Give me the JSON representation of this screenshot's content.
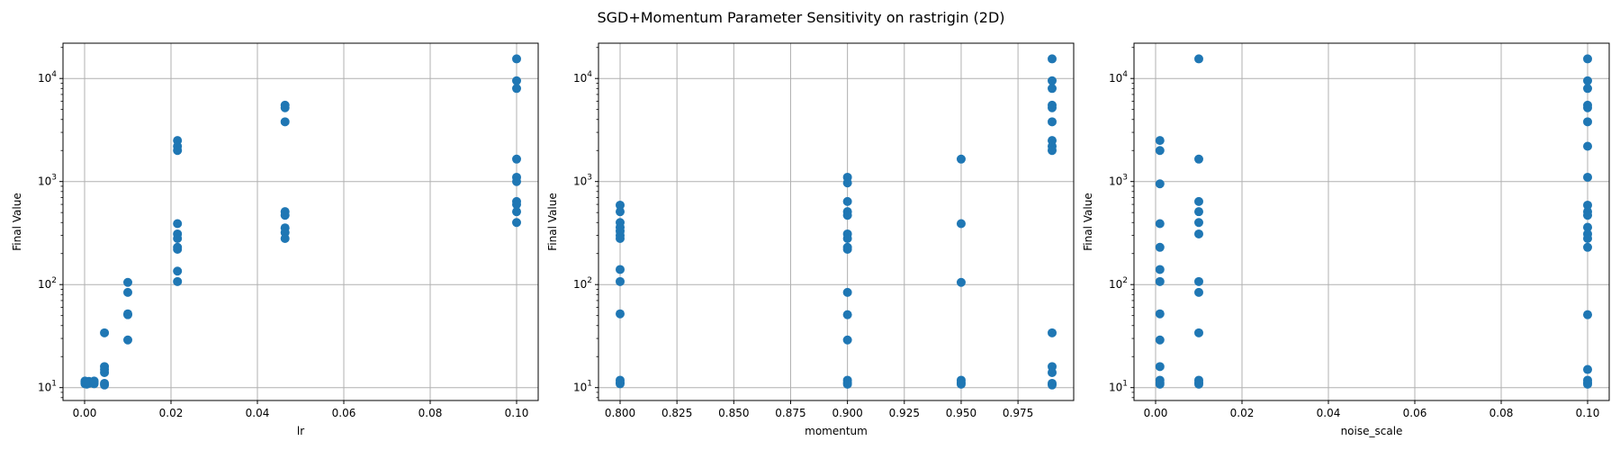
{
  "figure": {
    "title": "SGD+Momentum Parameter Sensitivity on rastrigin (2D)",
    "point_color": "#1f77b4",
    "grid_color": "#b0b0b0"
  },
  "chart_data": [
    {
      "type": "scatter",
      "xlabel": "lr",
      "ylabel": "Final Value",
      "yscale": "log",
      "grid": true,
      "xlim": [
        -0.005,
        0.105
      ],
      "ylim": [
        7.5,
        22000
      ],
      "xticks": [
        0.0,
        0.02,
        0.04,
        0.06,
        0.08,
        0.1
      ],
      "xtick_labels": [
        "0.00",
        "0.02",
        "0.04",
        "0.06",
        "0.08",
        "0.10"
      ],
      "yticks": [
        10,
        100,
        1000,
        10000
      ],
      "points": [
        [
          0.0001,
          10.9
        ],
        [
          0.0001,
          11.3
        ],
        [
          0.0001,
          11.6
        ],
        [
          0.0002,
          11.0
        ],
        [
          0.0005,
          11.2
        ],
        [
          0.0005,
          10.8
        ],
        [
          0.001,
          11.5
        ],
        [
          0.001,
          11.0
        ],
        [
          0.0022,
          11.3
        ],
        [
          0.0022,
          10.9
        ],
        [
          0.0022,
          11.6
        ],
        [
          0.0046,
          34
        ],
        [
          0.0046,
          16
        ],
        [
          0.0046,
          15
        ],
        [
          0.0046,
          14
        ],
        [
          0.0046,
          11
        ],
        [
          0.0046,
          10.6
        ],
        [
          0.01,
          105
        ],
        [
          0.01,
          84
        ],
        [
          0.01,
          52
        ],
        [
          0.01,
          51
        ],
        [
          0.01,
          29
        ],
        [
          0.0215,
          2500
        ],
        [
          0.0215,
          2200
        ],
        [
          0.0215,
          2000
        ],
        [
          0.0215,
          390
        ],
        [
          0.0215,
          310
        ],
        [
          0.0215,
          280
        ],
        [
          0.0215,
          230
        ],
        [
          0.0215,
          220
        ],
        [
          0.0215,
          135
        ],
        [
          0.0215,
          107
        ],
        [
          0.0464,
          5500
        ],
        [
          0.0464,
          5200
        ],
        [
          0.0464,
          3800
        ],
        [
          0.0464,
          510
        ],
        [
          0.0464,
          470
        ],
        [
          0.0464,
          355
        ],
        [
          0.0464,
          320
        ],
        [
          0.0464,
          280
        ],
        [
          0.1,
          15500
        ],
        [
          0.1,
          9500
        ],
        [
          0.1,
          8000
        ],
        [
          0.1,
          1650
        ],
        [
          0.1,
          1100
        ],
        [
          0.1,
          1000
        ],
        [
          0.1,
          640
        ],
        [
          0.1,
          600
        ],
        [
          0.1,
          510
        ],
        [
          0.1,
          400
        ]
      ]
    },
    {
      "type": "scatter",
      "xlabel": "momentum",
      "ylabel": "Final Value",
      "yscale": "log",
      "grid": true,
      "xlim": [
        0.7905,
        0.9995
      ],
      "ylim": [
        7.5,
        22000
      ],
      "xticks": [
        0.8,
        0.825,
        0.85,
        0.875,
        0.9,
        0.925,
        0.95,
        0.975
      ],
      "xtick_labels": [
        "0.800",
        "0.825",
        "0.850",
        "0.875",
        "0.900",
        "0.925",
        "0.950",
        "0.975"
      ],
      "yticks": [
        10,
        100,
        1000,
        10000
      ],
      "points": [
        [
          0.8,
          590
        ],
        [
          0.8,
          510
        ],
        [
          0.8,
          400
        ],
        [
          0.8,
          360
        ],
        [
          0.8,
          330
        ],
        [
          0.8,
          300
        ],
        [
          0.8,
          280
        ],
        [
          0.8,
          140
        ],
        [
          0.8,
          107
        ],
        [
          0.8,
          52
        ],
        [
          0.8,
          11.8
        ],
        [
          0.8,
          11.2
        ],
        [
          0.8,
          10.9
        ],
        [
          0.9,
          1100
        ],
        [
          0.9,
          970
        ],
        [
          0.9,
          640
        ],
        [
          0.9,
          510
        ],
        [
          0.9,
          470
        ],
        [
          0.9,
          310
        ],
        [
          0.9,
          280
        ],
        [
          0.9,
          230
        ],
        [
          0.9,
          220
        ],
        [
          0.9,
          84
        ],
        [
          0.9,
          51
        ],
        [
          0.9,
          29
        ],
        [
          0.9,
          11.8
        ],
        [
          0.9,
          11.2
        ],
        [
          0.9,
          10.8
        ],
        [
          0.95,
          1650
        ],
        [
          0.95,
          390
        ],
        [
          0.95,
          105
        ],
        [
          0.95,
          11.8
        ],
        [
          0.95,
          11.2
        ],
        [
          0.95,
          10.8
        ],
        [
          0.99,
          15500
        ],
        [
          0.99,
          9500
        ],
        [
          0.99,
          8000
        ],
        [
          0.99,
          5500
        ],
        [
          0.99,
          5200
        ],
        [
          0.99,
          3800
        ],
        [
          0.99,
          2500
        ],
        [
          0.99,
          2200
        ],
        [
          0.99,
          2000
        ],
        [
          0.99,
          34
        ],
        [
          0.99,
          16
        ],
        [
          0.99,
          14
        ],
        [
          0.99,
          11
        ],
        [
          0.99,
          10.6
        ]
      ]
    },
    {
      "type": "scatter",
      "xlabel": "noise_scale",
      "ylabel": "Final Value",
      "yscale": "log",
      "grid": true,
      "xlim": [
        -0.005,
        0.105
      ],
      "ylim": [
        7.5,
        22000
      ],
      "xticks": [
        0.0,
        0.02,
        0.04,
        0.06,
        0.08,
        0.1
      ],
      "xtick_labels": [
        "0.00",
        "0.02",
        "0.04",
        "0.06",
        "0.08",
        "0.10"
      ],
      "yticks": [
        10,
        100,
        1000,
        10000
      ],
      "points": [
        [
          0.001,
          2500
        ],
        [
          0.001,
          2000
        ],
        [
          0.001,
          950
        ],
        [
          0.001,
          390
        ],
        [
          0.001,
          230
        ],
        [
          0.001,
          140
        ],
        [
          0.001,
          107
        ],
        [
          0.001,
          52
        ],
        [
          0.001,
          29
        ],
        [
          0.001,
          16
        ],
        [
          0.001,
          11.8
        ],
        [
          0.001,
          11.2
        ],
        [
          0.001,
          10.8
        ],
        [
          0.01,
          15500
        ],
        [
          0.01,
          1650
        ],
        [
          0.01,
          640
        ],
        [
          0.01,
          510
        ],
        [
          0.01,
          400
        ],
        [
          0.01,
          310
        ],
        [
          0.01,
          107
        ],
        [
          0.01,
          84
        ],
        [
          0.01,
          34
        ],
        [
          0.01,
          11.8
        ],
        [
          0.01,
          11.2
        ],
        [
          0.01,
          10.8
        ],
        [
          0.1,
          15500
        ],
        [
          0.1,
          9500
        ],
        [
          0.1,
          8000
        ],
        [
          0.1,
          5500
        ],
        [
          0.1,
          5200
        ],
        [
          0.1,
          3800
        ],
        [
          0.1,
          2200
        ],
        [
          0.1,
          1100
        ],
        [
          0.1,
          590
        ],
        [
          0.1,
          510
        ],
        [
          0.1,
          470
        ],
        [
          0.1,
          360
        ],
        [
          0.1,
          310
        ],
        [
          0.1,
          280
        ],
        [
          0.1,
          230
        ],
        [
          0.1,
          51
        ],
        [
          0.1,
          15
        ],
        [
          0.1,
          11.8
        ],
        [
          0.1,
          11.2
        ],
        [
          0.1,
          10.8
        ]
      ]
    }
  ]
}
